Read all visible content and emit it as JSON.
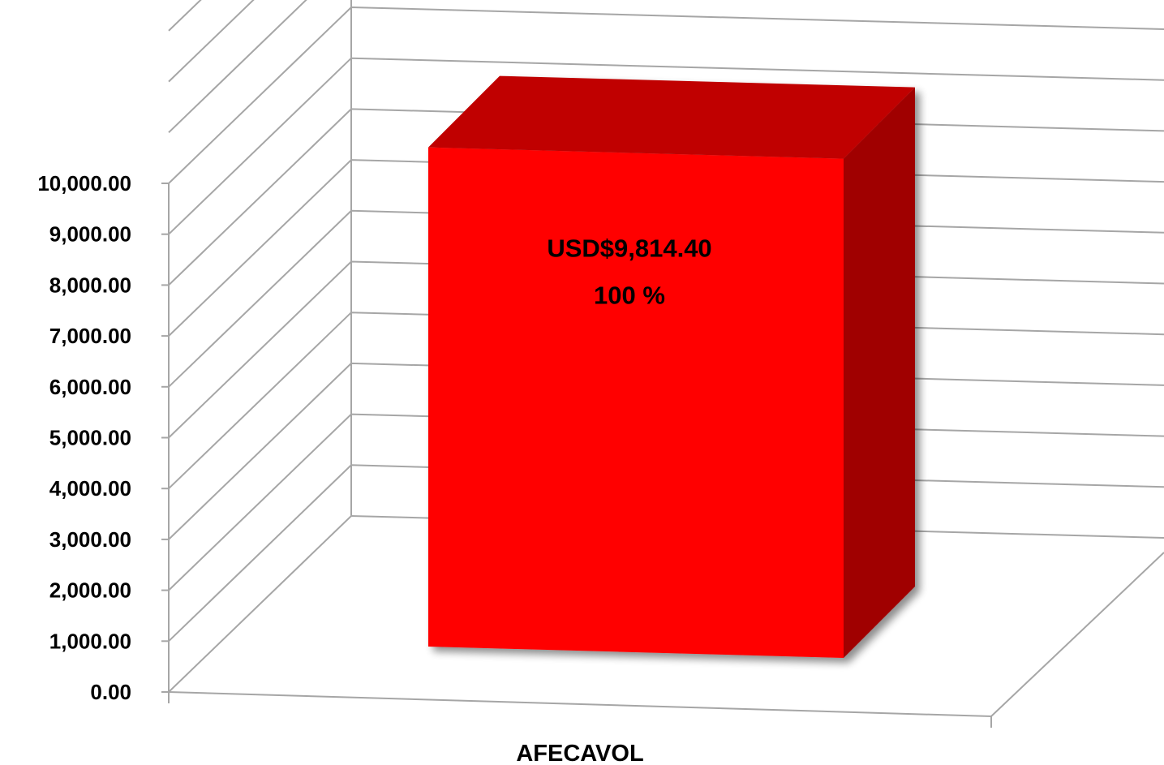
{
  "chart_data": {
    "type": "bar",
    "style": "3d-column",
    "categories": [
      "AFECAVOL"
    ],
    "values": [
      9814.4
    ],
    "ylim": [
      0,
      13000
    ],
    "yticks": [
      0,
      1000,
      2000,
      3000,
      4000,
      5000,
      6000,
      7000,
      8000,
      9000,
      10000
    ],
    "ytick_labels": [
      "0.00",
      "1,000.00",
      "2,000.00",
      "3,000.00",
      "4,000.00",
      "5,000.00",
      "6,000.00",
      "7,000.00",
      "8,000.00",
      "9,000.00",
      "10,000.00"
    ],
    "data_labels": [
      {
        "value_text": "USD$9,814.40",
        "percent_text": "100 %"
      }
    ],
    "grid": true,
    "legend": false,
    "bar_color": "#ff0000",
    "bar_top_color": "#c00000",
    "bar_side_color": "#a00000",
    "grid_color": "#a6a6a6"
  }
}
